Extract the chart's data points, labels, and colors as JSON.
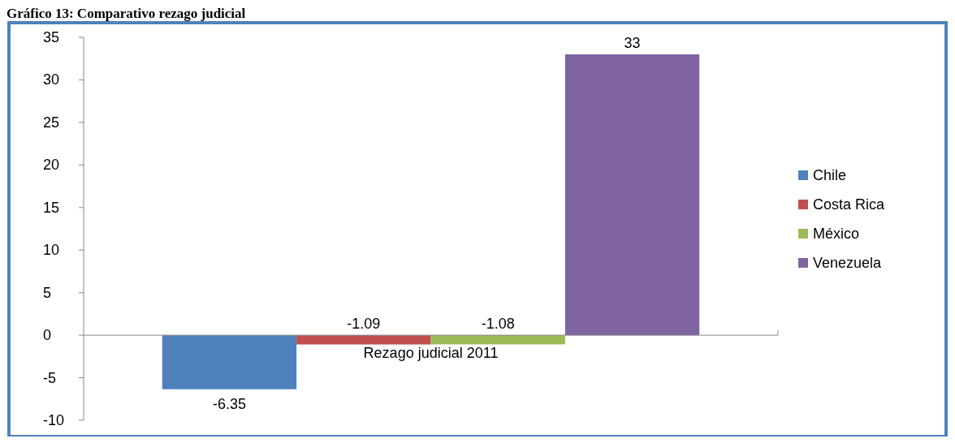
{
  "chart_data": {
    "type": "bar",
    "title": "Gráfico 13: Comparativo rezago judicial",
    "categories": [
      "Rezago judicial 2011"
    ],
    "series": [
      {
        "name": "Chile",
        "color": "#4f81bd",
        "values": [
          -6.35
        ]
      },
      {
        "name": "Costa Rica",
        "color": "#c0504d",
        "values": [
          -1.09
        ]
      },
      {
        "name": "México",
        "color": "#9bbb59",
        "values": [
          -1.08
        ]
      },
      {
        "name": "Venezuela",
        "color": "#8064a2",
        "values": [
          33
        ]
      }
    ],
    "ylim": [
      -10,
      35
    ],
    "yticks": [
      -10,
      -5,
      0,
      5,
      10,
      15,
      20,
      25,
      30,
      35
    ],
    "data_labels": true,
    "legend": "right"
  }
}
